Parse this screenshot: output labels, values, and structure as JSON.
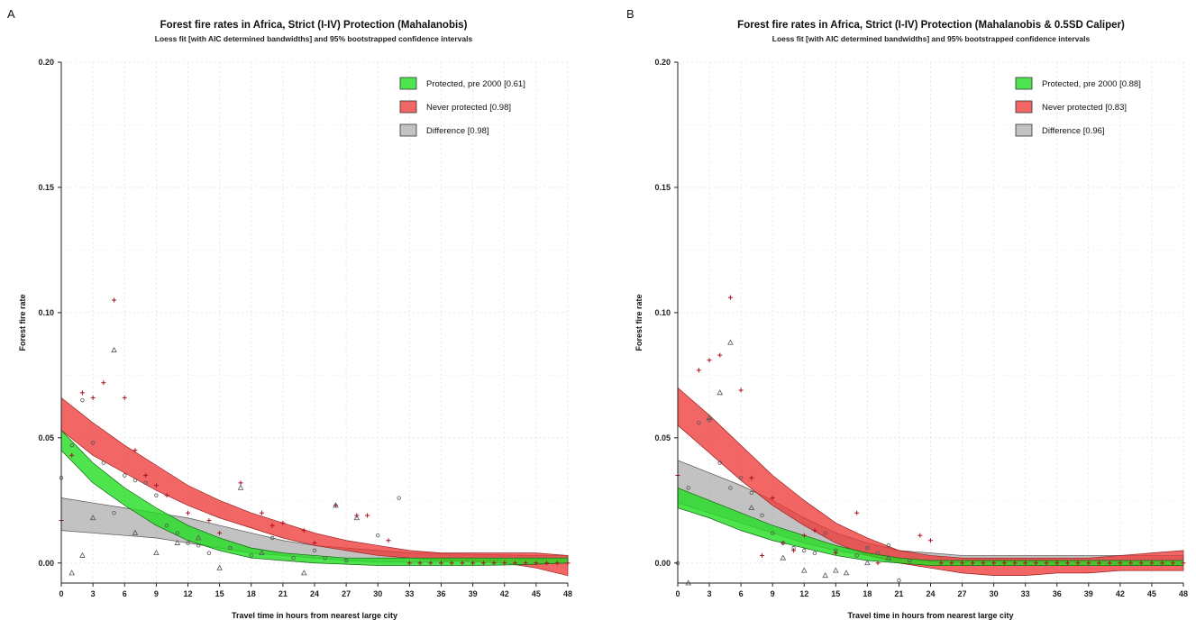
{
  "chart_data": [
    {
      "type": "area",
      "panel_label": "A",
      "title": "Forest fire rates in Africa, Strict (I-IV) Protection (Mahalanobis)",
      "subtitle": "Loess fit [with AIC determined bandwidths] and 95% bootstrapped confidence intervals",
      "xlabel": "Travel time in hours from nearest large city",
      "ylabel": "Forest fire rate",
      "xlim": [
        0,
        48
      ],
      "ylim": [
        -0.008,
        0.2
      ],
      "xticks": [
        0,
        3,
        6,
        9,
        12,
        15,
        18,
        21,
        24,
        27,
        30,
        33,
        36,
        39,
        42,
        45,
        48
      ],
      "yticks": [
        0.0,
        0.05,
        0.1,
        0.15,
        0.2
      ],
      "ytick_labels": [
        "0.00",
        "0.05",
        "0.10",
        "0.15",
        "0.20"
      ],
      "grid": true,
      "legend_position": "top-right",
      "colors": {
        "protected": "#22dd22",
        "never": "#ee3333",
        "difference": "#9a9a9a",
        "points_protected": "#555555",
        "points_never": "#aa1122"
      },
      "legend": [
        {
          "key": "protected",
          "label": "Protected, pre 2000 [0.61]"
        },
        {
          "key": "never",
          "label": "Never protected [0.98]"
        },
        {
          "key": "difference",
          "label": "Difference [0.98]"
        }
      ],
      "bands": [
        {
          "key": "difference",
          "x": [
            0,
            3,
            6,
            9,
            12,
            15,
            18,
            21,
            24,
            27,
            30,
            33,
            36,
            39,
            42,
            45,
            48
          ],
          "lower": [
            0.013,
            0.012,
            0.011,
            0.01,
            0.008,
            0.006,
            0.004,
            0.003,
            0.002,
            0.001,
            0.0005,
            0.0003,
            0.0005,
            0.001,
            0.0012,
            0.0012,
            0.001
          ],
          "upper": [
            0.026,
            0.024,
            0.022,
            0.02,
            0.018,
            0.015,
            0.012,
            0.009,
            0.007,
            0.006,
            0.005,
            0.004,
            0.0038,
            0.0035,
            0.0032,
            0.003,
            0.003
          ]
        },
        {
          "key": "never",
          "x": [
            0,
            3,
            6,
            9,
            12,
            15,
            18,
            21,
            24,
            27,
            30,
            33,
            36,
            39,
            42,
            45,
            48
          ],
          "lower": [
            0.053,
            0.043,
            0.036,
            0.029,
            0.023,
            0.018,
            0.014,
            0.01,
            0.007,
            0.005,
            0.003,
            0.002,
            0.001,
            0.0005,
            0.0,
            -0.002,
            -0.005
          ],
          "upper": [
            0.066,
            0.056,
            0.047,
            0.039,
            0.031,
            0.025,
            0.02,
            0.016,
            0.012,
            0.009,
            0.007,
            0.005,
            0.004,
            0.004,
            0.004,
            0.004,
            0.003
          ]
        },
        {
          "key": "protected",
          "x": [
            0,
            3,
            6,
            9,
            12,
            15,
            18,
            21,
            24,
            27,
            30,
            33,
            36,
            39,
            42,
            45,
            48
          ],
          "lower": [
            0.045,
            0.032,
            0.023,
            0.015,
            0.009,
            0.005,
            0.002,
            0.001,
            0.0,
            -0.0005,
            -0.001,
            -0.001,
            -0.001,
            -0.001,
            -0.0008,
            -0.0005,
            0.0
          ],
          "upper": [
            0.053,
            0.04,
            0.03,
            0.022,
            0.015,
            0.01,
            0.006,
            0.004,
            0.003,
            0.002,
            0.002,
            0.002,
            0.002,
            0.002,
            0.002,
            0.002,
            0.002
          ]
        }
      ],
      "points": [
        {
          "series": "never",
          "marker": "plus",
          "x": [
            0,
            1,
            2,
            3,
            4,
            5,
            6,
            7,
            8,
            9,
            10,
            12,
            14,
            15,
            17,
            19,
            20,
            21,
            23,
            24,
            26,
            28,
            29,
            31,
            33,
            34,
            35,
            36,
            37,
            38,
            39,
            40,
            41,
            42,
            43,
            44,
            45,
            46,
            47,
            48
          ],
          "y": [
            0.017,
            0.043,
            0.068,
            0.066,
            0.072,
            0.105,
            0.066,
            0.045,
            0.035,
            0.031,
            0.027,
            0.02,
            0.017,
            0.012,
            0.032,
            0.02,
            0.015,
            0.016,
            0.013,
            0.008,
            0.023,
            0.019,
            0.019,
            0.009,
            0.0,
            0.0,
            0.0,
            0.0,
            0.0,
            0.0,
            0.0,
            0.0,
            0.0,
            0.0,
            0.0,
            0.0,
            0.0,
            0.0,
            0.0,
            0.0
          ]
        },
        {
          "series": "protected",
          "marker": "triangle",
          "x": [
            1,
            2,
            3,
            5,
            7,
            9,
            11,
            13,
            15,
            17,
            19,
            23,
            26,
            28
          ],
          "y": [
            -0.004,
            0.003,
            0.018,
            0.085,
            0.012,
            0.004,
            0.008,
            0.01,
            -0.002,
            0.03,
            0.004,
            -0.004,
            0.023,
            0.018
          ]
        },
        {
          "series": "protected",
          "marker": "circle",
          "x": [
            0,
            1,
            2,
            3,
            4,
            5,
            6,
            7,
            8,
            9,
            10,
            11,
            12,
            13,
            14,
            16,
            18,
            20,
            22,
            24,
            25,
            27,
            30,
            32
          ],
          "y": [
            0.034,
            0.047,
            0.065,
            0.048,
            0.04,
            0.02,
            0.035,
            0.033,
            0.032,
            0.027,
            0.015,
            0.012,
            0.008,
            0.007,
            0.004,
            0.006,
            0.003,
            0.01,
            0.002,
            0.005,
            0.002,
            0.001,
            0.011,
            0.026
          ]
        }
      ]
    },
    {
      "type": "area",
      "panel_label": "B",
      "title": "Forest fire rates in Africa, Strict (I-IV) Protection (Mahalanobis & 0.5SD Caliper)",
      "subtitle": "Loess fit [with AIC determined bandwidths] and 95% bootstrapped confidence intervals",
      "xlabel": "Travel time in hours from nearest large city",
      "ylabel": "Forest fire rate",
      "xlim": [
        0,
        48
      ],
      "ylim": [
        -0.008,
        0.2
      ],
      "xticks": [
        0,
        3,
        6,
        9,
        12,
        15,
        18,
        21,
        24,
        27,
        30,
        33,
        36,
        39,
        42,
        45,
        48
      ],
      "yticks": [
        0.0,
        0.05,
        0.1,
        0.15,
        0.2
      ],
      "ytick_labels": [
        "0.00",
        "0.05",
        "0.10",
        "0.15",
        "0.20"
      ],
      "grid": true,
      "legend_position": "top-right",
      "colors": {
        "protected": "#22dd22",
        "never": "#ee3333",
        "difference": "#9a9a9a",
        "points_protected": "#555555",
        "points_never": "#aa1122"
      },
      "legend": [
        {
          "key": "protected",
          "label": "Protected, pre 2000 [0.88]"
        },
        {
          "key": "never",
          "label": "Never protected [0.83]"
        },
        {
          "key": "difference",
          "label": "Difference [0.96]"
        }
      ],
      "bands": [
        {
          "key": "difference",
          "x": [
            0,
            3,
            6,
            9,
            12,
            15,
            18,
            21,
            24,
            27,
            30,
            33,
            36,
            39,
            42,
            45,
            48
          ],
          "lower": [
            0.024,
            0.02,
            0.016,
            0.012,
            0.008,
            0.005,
            0.003,
            0.001,
            0.0005,
            0.0,
            0.0,
            0.0,
            0.0,
            0.0,
            -0.0005,
            -0.001,
            -0.001
          ],
          "upper": [
            0.041,
            0.036,
            0.031,
            0.025,
            0.018,
            0.012,
            0.008,
            0.005,
            0.004,
            0.003,
            0.003,
            0.003,
            0.003,
            0.003,
            0.003,
            0.003,
            0.003
          ]
        },
        {
          "key": "never",
          "x": [
            0,
            3,
            6,
            9,
            12,
            15,
            18,
            21,
            24,
            27,
            30,
            33,
            36,
            39,
            42,
            45,
            48
          ],
          "lower": [
            0.055,
            0.044,
            0.033,
            0.023,
            0.015,
            0.008,
            0.003,
            0.0,
            -0.002,
            -0.004,
            -0.005,
            -0.005,
            -0.004,
            -0.004,
            -0.003,
            -0.003,
            -0.003
          ],
          "upper": [
            0.07,
            0.059,
            0.047,
            0.035,
            0.025,
            0.016,
            0.01,
            0.005,
            0.003,
            0.002,
            0.002,
            0.002,
            0.002,
            0.002,
            0.003,
            0.004,
            0.005
          ]
        },
        {
          "key": "protected",
          "x": [
            0,
            3,
            6,
            9,
            12,
            15,
            18,
            21,
            24,
            27,
            30,
            33,
            36,
            39,
            42,
            45,
            48
          ],
          "lower": [
            0.022,
            0.018,
            0.013,
            0.009,
            0.006,
            0.003,
            0.001,
            0.0,
            -0.001,
            -0.001,
            -0.001,
            -0.001,
            -0.001,
            -0.001,
            -0.001,
            -0.001,
            -0.001
          ],
          "upper": [
            0.03,
            0.025,
            0.02,
            0.015,
            0.011,
            0.007,
            0.004,
            0.002,
            0.001,
            0.001,
            0.001,
            0.001,
            0.001,
            0.001,
            0.001,
            0.001,
            0.001
          ]
        }
      ],
      "points": [
        {
          "series": "never",
          "marker": "plus",
          "x": [
            0,
            2,
            3,
            4,
            5,
            6,
            7,
            8,
            9,
            10,
            11,
            12,
            13,
            15,
            17,
            19,
            23,
            24,
            25,
            26,
            27,
            28,
            29,
            30,
            31,
            32,
            33,
            34,
            35,
            36,
            37,
            38,
            39,
            40,
            41,
            42,
            43,
            44,
            45,
            46,
            47,
            48
          ],
          "y": [
            0.035,
            0.077,
            0.081,
            0.083,
            0.106,
            0.069,
            0.034,
            0.003,
            0.026,
            0.008,
            0.005,
            0.011,
            0.013,
            0.004,
            0.02,
            0.0,
            0.011,
            0.009,
            0.0,
            0.0,
            0.0,
            0.0,
            0.0,
            0.0,
            0.0,
            0.0,
            0.0,
            0.0,
            0.0,
            0.0,
            0.0,
            0.0,
            0.0,
            0.0,
            0.0,
            0.0,
            0.0,
            0.0,
            0.0,
            0.0,
            0.0,
            0.0
          ]
        },
        {
          "series": "protected",
          "marker": "triangle",
          "x": [
            1,
            3,
            4,
            5,
            7,
            10,
            12,
            14,
            15,
            16,
            18,
            20
          ],
          "y": [
            -0.008,
            0.058,
            0.068,
            0.088,
            0.022,
            0.002,
            -0.003,
            -0.005,
            -0.003,
            -0.004,
            0.0,
            0.002
          ]
        },
        {
          "series": "protected",
          "marker": "circle",
          "x": [
            0,
            1,
            2,
            3,
            4,
            5,
            6,
            7,
            8,
            9,
            10,
            11,
            12,
            13,
            14,
            15,
            17,
            18,
            19,
            20,
            21,
            22
          ],
          "y": [
            0.0,
            0.03,
            0.056,
            0.057,
            0.04,
            0.03,
            0.034,
            0.028,
            0.019,
            0.012,
            0.008,
            0.006,
            0.005,
            0.004,
            0.012,
            0.005,
            0.003,
            0.006,
            0.004,
            0.007,
            -0.007,
            0.001
          ]
        }
      ]
    }
  ]
}
